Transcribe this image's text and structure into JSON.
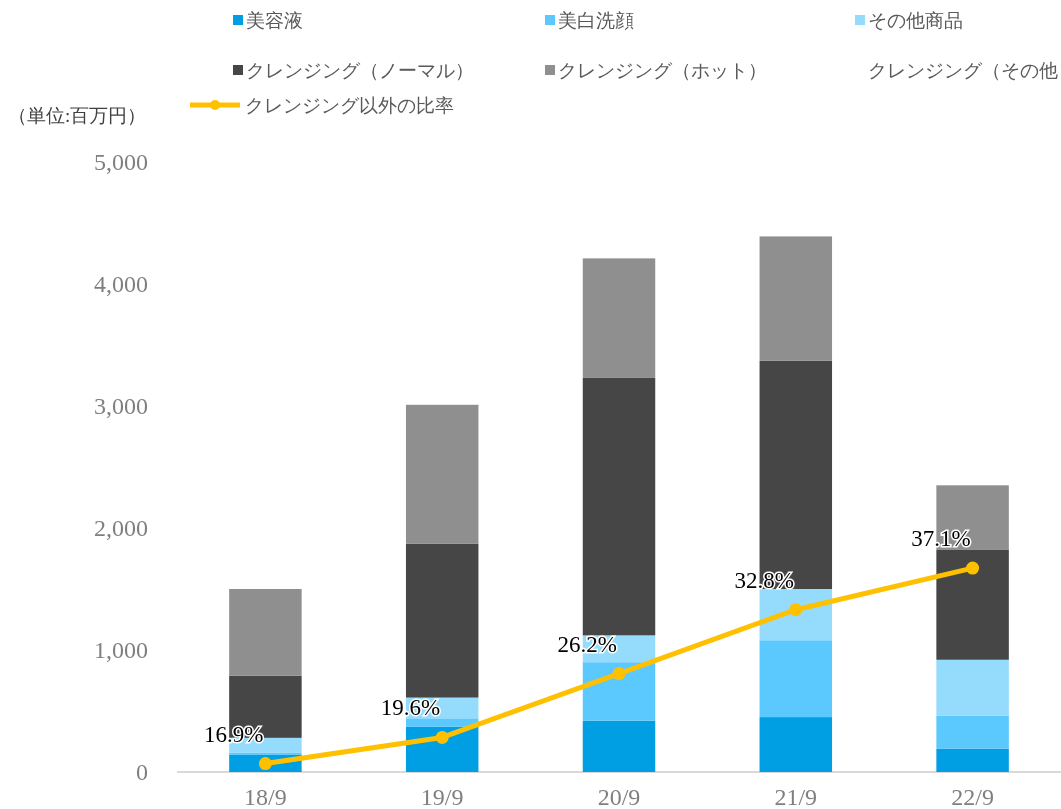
{
  "chart_data": {
    "type": "bar",
    "stacked": true,
    "legend": "top",
    "categories": [
      "18/9",
      "19/9",
      "20/9",
      "21/9",
      "22/9"
    ],
    "ylim": [
      0,
      5000
    ],
    "yticks": [
      0,
      {
        "value": 1000,
        "label": "1,000"
      },
      {
        "value": 2000,
        "label": "2,000"
      },
      {
        "value": 3000,
        "label": "3,000"
      },
      {
        "value": 4000,
        "label": "4,000"
      },
      {
        "value": 5000,
        "label": "5,000"
      }
    ],
    "annotations": [
      "（単位:百万円）"
    ],
    "series": [
      {
        "name": "美容液",
        "color": "#009fe3",
        "values": [
          140,
          370,
          420,
          450,
          190
        ]
      },
      {
        "name": "美白洗顔",
        "color": "#5bc8fe",
        "values": [
          20,
          70,
          480,
          630,
          270
        ]
      },
      {
        "name": "その他商品",
        "color": "#94dbfc",
        "values": [
          120,
          170,
          220,
          420,
          460
        ]
      },
      {
        "name": "クレンジング（ノーマル）",
        "color": "#464646",
        "values": [
          510,
          1260,
          2110,
          1870,
          900
        ]
      },
      {
        "name": "クレンジング（ホット）",
        "color": "#8f8f8f",
        "values": [
          710,
          1140,
          980,
          1020,
          530
        ]
      },
      {
        "name": "クレンジング（その他）",
        "values": [
          0,
          0,
          0,
          0,
          0
        ]
      },
      {
        "name": "クレンジング以外の比率",
        "type": "line",
        "axis": "y2",
        "marker": "circle",
        "color": "#ffc000",
        "values": [
          16.9,
          19.6,
          26.2,
          32.8,
          37.1
        ],
        "value_labels": [
          "16.9%",
          "19.6%",
          "26.2%",
          "32.8%",
          "37.1%"
        ]
      }
    ]
  }
}
